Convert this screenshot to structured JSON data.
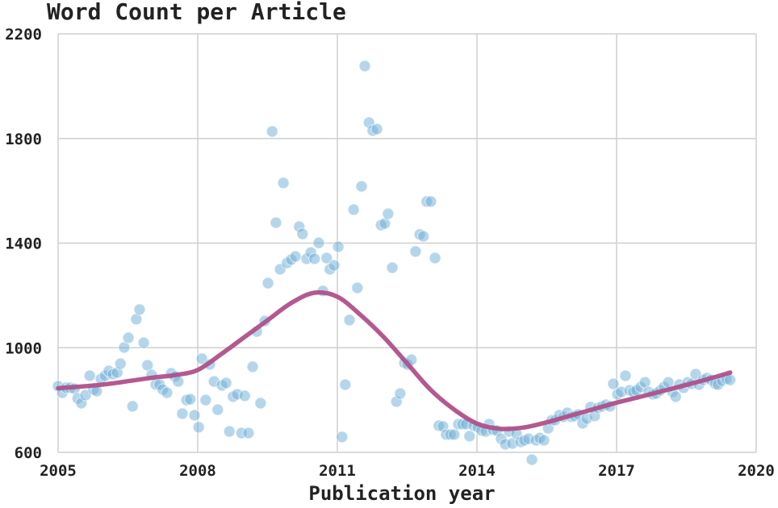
{
  "chart_data": {
    "type": "scatter",
    "title": "Word Count per Article",
    "xlabel": "Publication year",
    "xlim": [
      2005,
      2020
    ],
    "xticks": [
      2005,
      2008,
      2011,
      2014,
      2017,
      2020
    ],
    "ylim": [
      600,
      2200
    ],
    "yticks": [
      600,
      1000,
      1400,
      1800,
      2200
    ],
    "grid": true,
    "color": "#6baed6",
    "x": [
      2005.0,
      2005.09,
      2005.17,
      2005.26,
      2005.35,
      2005.42,
      2005.5,
      2005.59,
      2005.68,
      2005.76,
      2005.83,
      2005.92,
      2006.01,
      2006.09,
      2006.18,
      2006.27,
      2006.34,
      2006.42,
      2006.51,
      2006.6,
      2006.68,
      2006.75,
      2006.84,
      2006.92,
      2007.01,
      2007.1,
      2007.18,
      2007.25,
      2007.34,
      2007.43,
      2007.51,
      2007.58,
      2007.67,
      2007.76,
      2007.84,
      2007.93,
      2008.02,
      2008.09,
      2008.17,
      2008.26,
      2008.35,
      2008.43,
      2008.52,
      2008.61,
      2008.68,
      2008.76,
      2008.85,
      2008.94,
      2009.01,
      2009.09,
      2009.18,
      2009.27,
      2009.35,
      2009.44,
      2009.51,
      2009.6,
      2009.68,
      2009.77,
      2009.84,
      2009.92,
      2010.01,
      2010.1,
      2010.18,
      2010.25,
      2010.34,
      2010.43,
      2010.51,
      2010.6,
      2010.69,
      2010.77,
      2010.84,
      2010.93,
      2011.02,
      2011.1,
      2011.17,
      2011.26,
      2011.35,
      2011.43,
      2011.52,
      2011.59,
      2011.68,
      2011.76,
      2011.85,
      2011.94,
      2012.02,
      2012.09,
      2012.18,
      2012.27,
      2012.35,
      2012.44,
      2012.51,
      2012.59,
      2012.68,
      2012.77,
      2012.85,
      2012.92,
      2013.01,
      2013.1,
      2013.18,
      2013.27,
      2013.34,
      2013.43,
      2013.51,
      2013.6,
      2013.69,
      2013.77,
      2013.84,
      2013.93,
      2014.02,
      2014.1,
      2014.19,
      2014.26,
      2014.35,
      2014.43,
      2014.52,
      2014.61,
      2014.69,
      2014.76,
      2014.85,
      2014.94,
      2015.02,
      2015.11,
      2015.18,
      2015.27,
      2015.35,
      2015.44,
      2015.53,
      2015.61,
      2015.68,
      2015.77,
      2015.86,
      2015.94,
      2016.03,
      2016.1,
      2016.18,
      2016.27,
      2016.36,
      2016.44,
      2016.53,
      2016.6,
      2016.69,
      2016.77,
      2016.86,
      2016.93,
      2017.02,
      2017.1,
      2017.19,
      2017.28,
      2017.36,
      2017.43,
      2017.52,
      2017.61,
      2017.69,
      2017.78,
      2017.85,
      2017.94,
      2018.02,
      2018.11,
      2018.2,
      2018.27,
      2018.35,
      2018.44,
      2018.53,
      2018.61,
      2018.7,
      2018.77,
      2018.86,
      2018.94,
      2019.03,
      2019.12,
      2019.18,
      2019.27,
      2019.36,
      2019.44
    ],
    "y": [
      853,
      828,
      847,
      847,
      843,
      806,
      788,
      819,
      893,
      840,
      834,
      881,
      893,
      911,
      899,
      905,
      939,
      1001,
      1038,
      776,
      1109,
      1146,
      1019,
      933,
      896,
      859,
      859,
      840,
      828,
      902,
      890,
      871,
      748,
      800,
      803,
      742,
      696,
      958,
      800,
      936,
      871,
      763,
      856,
      865,
      680,
      813,
      822,
      674,
      816,
      674,
      927,
      1062,
      788,
      1102,
      1247,
      1827,
      1478,
      1300,
      1630,
      1324,
      1337,
      1349,
      1463,
      1435,
      1340,
      1364,
      1340,
      1401,
      1217,
      1343,
      1300,
      1315,
      1386,
      659,
      859,
      1106,
      1528,
      1229,
      1617,
      2077,
      1861,
      1830,
      1836,
      1469,
      1475,
      1512,
      1306,
      794,
      825,
      942,
      936,
      954,
      1368,
      1433,
      1426,
      1559,
      1559,
      1343,
      702,
      699,
      668,
      668,
      668,
      708,
      708,
      708,
      662,
      702,
      696,
      683,
      680,
      708,
      686,
      683,
      652,
      631,
      680,
      634,
      671,
      640,
      646,
      652,
      572,
      646,
      655,
      646,
      692,
      723,
      723,
      742,
      736,
      751,
      736,
      739,
      745,
      711,
      729,
      773,
      739,
      770,
      776,
      782,
      776,
      862,
      822,
      831,
      893,
      837,
      831,
      837,
      850,
      868,
      831,
      822,
      825,
      837,
      850,
      868,
      831,
      813,
      859,
      847,
      868,
      862,
      899,
      859,
      877,
      884,
      877,
      862,
      859,
      874,
      881,
      877
    ],
    "trend": {
      "type": "line",
      "color": "#b0508a",
      "x": [
        2005.0,
        2006.0,
        2007.0,
        2007.5,
        2008.0,
        2008.5,
        2009.0,
        2009.5,
        2010.0,
        2010.5,
        2011.0,
        2011.5,
        2012.0,
        2012.5,
        2013.0,
        2013.5,
        2014.0,
        2014.5,
        2015.0,
        2015.5,
        2016.0,
        2016.5,
        2017.0,
        2017.5,
        2018.0,
        2018.5,
        2019.0,
        2019.44
      ],
      "y": [
        845,
        860,
        885,
        895,
        915,
        975,
        1040,
        1105,
        1170,
        1210,
        1195,
        1125,
        1040,
        940,
        840,
        765,
        710,
        690,
        695,
        715,
        740,
        765,
        790,
        812,
        835,
        858,
        882,
        905
      ]
    }
  }
}
